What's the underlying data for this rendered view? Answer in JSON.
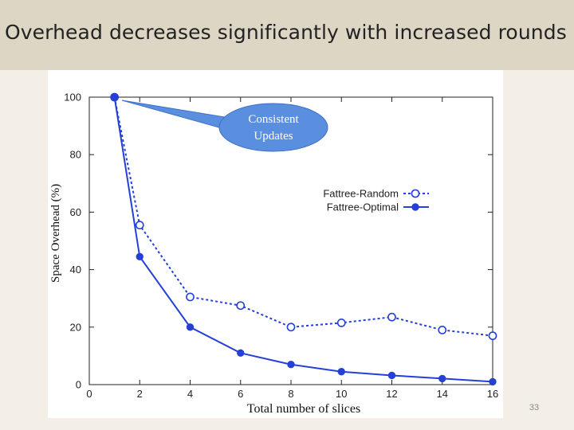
{
  "slide": {
    "title": "Overhead decreases significantly with increased rounds",
    "page_number": "33"
  },
  "callout": {
    "line1": "Consistent",
    "line2": "Updates"
  },
  "colors": {
    "series": "#2440d6",
    "callout_fill": "#5a8fe0",
    "title_band": "#ded6c4"
  },
  "chart_data": {
    "type": "line",
    "xlabel": "Total number of slices",
    "ylabel": "Space Overhead (%)",
    "xlim": [
      0,
      16
    ],
    "ylim": [
      0,
      100
    ],
    "x_ticks": [
      0,
      2,
      4,
      6,
      8,
      10,
      12,
      14,
      16
    ],
    "y_ticks": [
      0,
      20,
      40,
      60,
      80,
      100
    ],
    "legend_position": "right",
    "grid": false,
    "series": [
      {
        "name": "Fattree-Random",
        "style": "dotted-open-circle",
        "points": [
          [
            1,
            100
          ],
          [
            2,
            55.5
          ],
          [
            4,
            30.5
          ],
          [
            6,
            27.5
          ],
          [
            8,
            20
          ],
          [
            10,
            21.5
          ],
          [
            12,
            23.5
          ],
          [
            14,
            19
          ],
          [
            16,
            17
          ]
        ]
      },
      {
        "name": "Fattree-Optimal",
        "style": "solid-filled-circle",
        "points": [
          [
            1,
            100
          ],
          [
            2,
            44.5
          ],
          [
            4,
            20
          ],
          [
            6,
            11
          ],
          [
            8,
            7
          ],
          [
            10,
            4.5
          ],
          [
            12,
            3.2
          ],
          [
            14,
            2.1
          ],
          [
            16,
            1
          ]
        ]
      }
    ]
  }
}
